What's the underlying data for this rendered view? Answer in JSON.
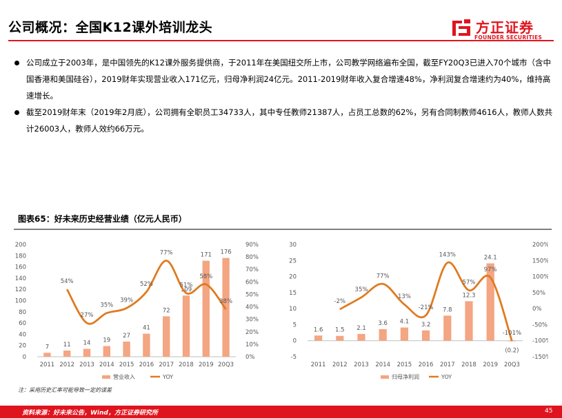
{
  "header": {
    "title": "公司概况：全国K12课外培训龙头",
    "logo_name": "方正证券",
    "logo_sub": "FOUNDER SECURITIES"
  },
  "bullets": [
    "公司成立于2003年，是中国领先的K12课外服务提供商，于2011年在美国纽交所上市，公司教学网络遍布全国，截至FY20Q3已进入70个城市（含中国香港和美国硅谷），2019财年实现营业收入171亿元，归母净利润24亿元。2011-2019财年收入复合增速48%，净利润复合增速约为40%，维持高速增长。",
    "截至2019财年末（2019年2月底），公司拥有全职员工34733人，其中专任教师21387人，占员工总数的62%，另有合同制教师4616人，教师人数共计26003人，教师人效约66万元。"
  ],
  "figure_title": "图表65：好未来历史经营业绩（亿元人民币）",
  "note": "注：采用历史汇率可能导致一定的误差",
  "source": "资料来源：好未来公告，Wind，方正证券研究所",
  "page_number": "45",
  "colors": {
    "bar": "#f4a582",
    "line": "#e07a1f",
    "brand": "#e0141e"
  },
  "chart_data": [
    {
      "type": "bar",
      "categories": [
        "2011",
        "2012",
        "2013",
        "2014",
        "2015",
        "2016",
        "2017",
        "2018",
        "2019",
        "20Q3"
      ],
      "series": [
        {
          "name": "营业收入",
          "type": "bar",
          "axis": "left",
          "values": [
            7,
            11,
            14,
            19,
            27,
            41,
            72,
            109,
            171,
            176
          ],
          "labels": [
            "7",
            "11",
            "14",
            "19",
            "27",
            "41",
            "72",
            "109",
            "171",
            "176"
          ]
        },
        {
          "name": "YOY",
          "type": "line",
          "axis": "right",
          "values": [
            null,
            54,
            27,
            35,
            39,
            52,
            77,
            51,
            58,
            38
          ],
          "labels": [
            "",
            "54%",
            "27%",
            "35%",
            "39%",
            "52%",
            "77%",
            "51%",
            "58%",
            "38%"
          ]
        }
      ],
      "left_axis": {
        "ylim": [
          0,
          200
        ],
        "ticks": [
          "0",
          "20",
          "40",
          "60",
          "80",
          "100",
          "120",
          "140",
          "160",
          "180",
          "200"
        ]
      },
      "right_axis": {
        "ylim": [
          0,
          90
        ],
        "ticks": [
          "0%",
          "10%",
          "20%",
          "30%",
          "40%",
          "50%",
          "60%",
          "70%",
          "80%",
          "90%"
        ]
      },
      "legend": [
        "营业收入",
        "YOY"
      ]
    },
    {
      "type": "bar",
      "categories": [
        "2011",
        "2012",
        "2013",
        "2014",
        "2015",
        "2016",
        "2017",
        "2018",
        "2019",
        "20Q3"
      ],
      "series": [
        {
          "name": "归母净利润",
          "type": "bar",
          "axis": "left",
          "values": [
            1.6,
            1.5,
            2.1,
            3.6,
            4.1,
            3.2,
            7.8,
            12.3,
            24.1,
            -0.2
          ],
          "labels": [
            "1.6",
            "1.5",
            "2.1",
            "3.6",
            "4.1",
            "3.2",
            "7.8",
            "12.3",
            "24.1",
            "(0.2)"
          ]
        },
        {
          "name": "YOY",
          "type": "line",
          "axis": "right",
          "values": [
            null,
            -2,
            35,
            77,
            13,
            -21,
            143,
            57,
            97,
            -101
          ],
          "labels": [
            "",
            "-2%",
            "35%",
            "77%",
            "13%",
            "-21%",
            "143%",
            "57%",
            "97%",
            "-101%"
          ]
        }
      ],
      "left_axis": {
        "ylim": [
          -5,
          30
        ],
        "ticks": [
          "-5",
          "0",
          "5",
          "10",
          "15",
          "20",
          "25",
          "30"
        ]
      },
      "right_axis": {
        "ylim": [
          -150,
          200
        ],
        "ticks": [
          "-150%",
          "-100%",
          "-50%",
          "0%",
          "50%",
          "100%",
          "150%",
          "200%"
        ]
      },
      "legend": [
        "归母净利润",
        "YOY"
      ]
    }
  ]
}
